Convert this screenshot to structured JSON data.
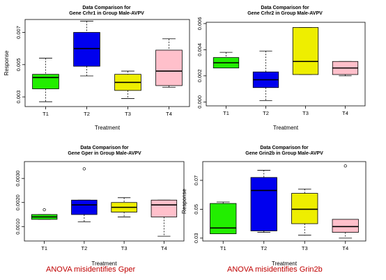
{
  "chart_data": [
    {
      "type": "boxplot",
      "title_line1": "Data Comparison for",
      "title_line2": "Gene Crhr1 in Group Male-AVPV",
      "xlabel": "Treatment",
      "ylabel": "Response",
      "categories": [
        "T1",
        "T2",
        "T3",
        "T4"
      ],
      "yticks": [
        0.003,
        0.005,
        0.007
      ],
      "yticklabels": [
        "0.003",
        "0.005",
        "0.007"
      ],
      "ylim": [
        0.0024,
        0.0078
      ],
      "boxes": [
        {
          "name": "T1",
          "color": "#22ee00",
          "whisker_low": 0.0027,
          "q1": 0.0035,
          "median": 0.0042,
          "q3": 0.0044,
          "whisker_high": 0.0054
        },
        {
          "name": "T2",
          "color": "#0000ee",
          "whisker_low": 0.0043,
          "q1": 0.0049,
          "median": 0.006,
          "q3": 0.007,
          "whisker_high": 0.0077
        },
        {
          "name": "T3",
          "color": "#eeee00",
          "whisker_low": 0.0029,
          "q1": 0.0034,
          "median": 0.0039,
          "q3": 0.0044,
          "whisker_high": 0.0046
        },
        {
          "name": "T4",
          "color": "#ffc0cb",
          "whisker_low": 0.0036,
          "q1": 0.0037,
          "median": 0.0046,
          "q3": 0.0059,
          "whisker_high": 0.0066
        }
      ],
      "outliers": []
    },
    {
      "type": "boxplot",
      "title_line1": "Data Comparison for",
      "title_line2": "Gene Crhr2 in Group Male-AVPV",
      "xlabel": "Treatment",
      "ylabel": "",
      "categories": [
        "T1",
        "T2",
        "T3",
        "T4"
      ],
      "yticks": [
        0.0,
        0.002,
        0.004,
        0.006
      ],
      "yticklabels": [
        "0.000",
        "0.002",
        "0.004",
        "0.006"
      ],
      "ylim": [
        -0.0003,
        0.0061
      ],
      "boxes": [
        {
          "name": "T1",
          "color": "#22ee00",
          "whisker_low": 0.0026,
          "q1": 0.0026,
          "median": 0.003,
          "q3": 0.0034,
          "whisker_high": 0.0038
        },
        {
          "name": "T2",
          "color": "#0000ee",
          "whisker_low": 0.0001,
          "q1": 0.0011,
          "median": 0.0017,
          "q3": 0.0023,
          "whisker_high": 0.0039
        },
        {
          "name": "T3",
          "color": "#eeee00",
          "whisker_low": 0.0021,
          "q1": 0.0021,
          "median": 0.0031,
          "q3": 0.0057,
          "whisker_high": 0.0057
        },
        {
          "name": "T4",
          "color": "#ffc0cb",
          "whisker_low": 0.002,
          "q1": 0.0021,
          "median": 0.0026,
          "q3": 0.0031,
          "whisker_high": 0.0031
        }
      ],
      "outliers": []
    },
    {
      "type": "boxplot",
      "title_line1": "Data Comparison for",
      "title_line2": "Gene Gper in Group Male-AVPV",
      "xlabel": "Treatment",
      "ylabel": "",
      "categories": [
        "T1",
        "T2",
        "T3",
        "T4"
      ],
      "yticks": [
        0.001,
        0.002,
        0.003
      ],
      "yticklabels": [
        "0.0010",
        "0.0020",
        "0.0030"
      ],
      "ylim": [
        0.0004,
        0.0037
      ],
      "boxes": [
        {
          "name": "T1",
          "color": "#22ee00",
          "whisker_low": 0.0013,
          "q1": 0.0013,
          "median": 0.0014,
          "q3": 0.0015,
          "whisker_high": 0.0015
        },
        {
          "name": "T2",
          "color": "#0000ee",
          "whisker_low": 0.0012,
          "q1": 0.0015,
          "median": 0.0019,
          "q3": 0.0021,
          "whisker_high": 0.0021
        },
        {
          "name": "T3",
          "color": "#eeee00",
          "whisker_low": 0.0014,
          "q1": 0.0016,
          "median": 0.0018,
          "q3": 0.002,
          "whisker_high": 0.0022
        },
        {
          "name": "T4",
          "color": "#ffc0cb",
          "whisker_low": 0.0006,
          "q1": 0.0014,
          "median": 0.0019,
          "q3": 0.0021,
          "whisker_high": 0.0021
        }
      ],
      "outliers": [
        {
          "category": "T1",
          "value": 0.0017
        },
        {
          "category": "T2",
          "value": 0.0034
        }
      ]
    },
    {
      "type": "boxplot",
      "title_line1": "Data Comparison for",
      "title_line2": "Gene Grin2b in Group Male-AVPV",
      "xlabel": "Treatment",
      "ylabel": "Response",
      "categories": [
        "T1",
        "T2",
        "T3",
        "T4"
      ],
      "yticks": [
        0.03,
        0.05,
        0.07
      ],
      "yticklabels": [
        "0.03",
        "0.05",
        "0.07"
      ],
      "ylim": [
        0.028,
        0.083
      ],
      "boxes": [
        {
          "name": "T1",
          "color": "#22ee00",
          "whisker_low": 0.033,
          "q1": 0.033,
          "median": 0.037,
          "q3": 0.054,
          "whisker_high": 0.055
        },
        {
          "name": "T2",
          "color": "#0000ee",
          "whisker_low": 0.034,
          "q1": 0.035,
          "median": 0.063,
          "q3": 0.072,
          "whisker_high": 0.077
        },
        {
          "name": "T3",
          "color": "#eeee00",
          "whisker_low": 0.032,
          "q1": 0.04,
          "median": 0.05,
          "q3": 0.061,
          "whisker_high": 0.064
        },
        {
          "name": "T4",
          "color": "#ffc0cb",
          "whisker_low": 0.03,
          "q1": 0.034,
          "median": 0.038,
          "q3": 0.043,
          "whisker_high": 0.043
        }
      ],
      "outliers": [
        {
          "category": "T4",
          "value": 0.08
        }
      ]
    }
  ],
  "captions": {
    "left": "ANOVA misidentifies Gper",
    "right": "ANOVA misidentifies Grin2b"
  }
}
